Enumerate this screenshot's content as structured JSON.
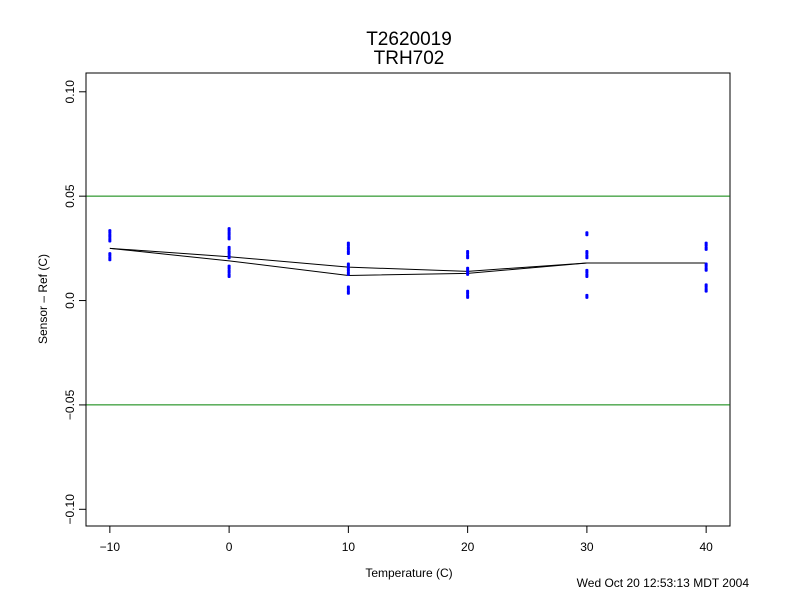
{
  "chart_data": {
    "type": "scatter",
    "title": "T2620019",
    "subtitle": "TRH702",
    "xlabel": "Temperature (C)",
    "ylabel": "Sensor – Ref (C)",
    "xlim": [
      -12,
      42
    ],
    "ylim": [
      -0.108,
      0.109
    ],
    "x_ticks": [
      -10,
      0,
      10,
      20,
      30,
      40
    ],
    "x_tick_labels": [
      "−10",
      "0",
      "10",
      "20",
      "30",
      "40"
    ],
    "y_ticks": [
      -0.1,
      -0.05,
      0.0,
      0.05,
      0.1
    ],
    "y_tick_labels": [
      "−0.10",
      "−0.05",
      "0.0",
      "0.05",
      "0.10"
    ],
    "reference_lines": {
      "y": [
        0.05,
        -0.05
      ],
      "color": "#008000"
    },
    "points_color": "#0000ff",
    "line_color": "#000000",
    "grid": false,
    "legend": "none",
    "points": [
      {
        "x": -10,
        "y": 0.033
      },
      {
        "x": -10,
        "y": 0.031
      },
      {
        "x": -10,
        "y": 0.029
      },
      {
        "x": -10,
        "y": 0.022
      },
      {
        "x": -10,
        "y": 0.02
      },
      {
        "x": 0,
        "y": 0.034
      },
      {
        "x": 0,
        "y": 0.032
      },
      {
        "x": 0,
        "y": 0.03
      },
      {
        "x": 0,
        "y": 0.025
      },
      {
        "x": 0,
        "y": 0.023
      },
      {
        "x": 0,
        "y": 0.021
      },
      {
        "x": 0,
        "y": 0.016
      },
      {
        "x": 0,
        "y": 0.014
      },
      {
        "x": 0,
        "y": 0.012
      },
      {
        "x": 10,
        "y": 0.027
      },
      {
        "x": 10,
        "y": 0.025
      },
      {
        "x": 10,
        "y": 0.023
      },
      {
        "x": 10,
        "y": 0.017
      },
      {
        "x": 10,
        "y": 0.015
      },
      {
        "x": 10,
        "y": 0.013
      },
      {
        "x": 10,
        "y": 0.006
      },
      {
        "x": 10,
        "y": 0.004
      },
      {
        "x": 20,
        "y": 0.023
      },
      {
        "x": 20,
        "y": 0.021
      },
      {
        "x": 20,
        "y": 0.015
      },
      {
        "x": 20,
        "y": 0.013
      },
      {
        "x": 20,
        "y": 0.004
      },
      {
        "x": 20,
        "y": 0.002
      },
      {
        "x": 30,
        "y": 0.032
      },
      {
        "x": 30,
        "y": 0.023
      },
      {
        "x": 30,
        "y": 0.021
      },
      {
        "x": 30,
        "y": 0.014
      },
      {
        "x": 30,
        "y": 0.012
      },
      {
        "x": 30,
        "y": 0.002
      },
      {
        "x": 40,
        "y": 0.027
      },
      {
        "x": 40,
        "y": 0.025
      },
      {
        "x": 40,
        "y": 0.017
      },
      {
        "x": 40,
        "y": 0.015
      },
      {
        "x": 40,
        "y": 0.007
      },
      {
        "x": 40,
        "y": 0.005
      }
    ],
    "series": [
      {
        "x": [
          -10,
          0,
          10,
          20,
          30,
          40
        ],
        "values": [
          0.025,
          0.021,
          0.016,
          0.014,
          0.018,
          0.018
        ]
      },
      {
        "x": [
          -10,
          0,
          10,
          20,
          30,
          40
        ],
        "values": [
          0.025,
          0.019,
          0.012,
          0.013,
          0.018,
          0.018
        ]
      }
    ]
  },
  "footer": {
    "timestamp": "Wed Oct 20 12:53:13 MDT 2004"
  }
}
